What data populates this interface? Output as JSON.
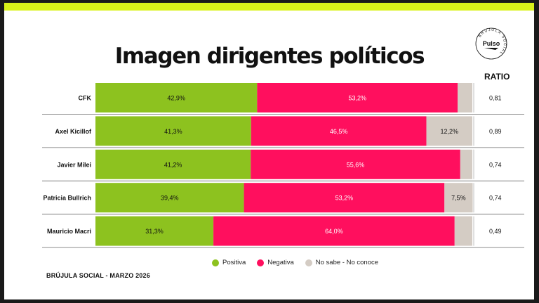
{
  "title": "Imagen dirigentes políticos",
  "ratio_header": "RATIO",
  "footer": "BRÚJULA SOCIAL - MARZO 2026",
  "logo": {
    "word": "Pulso",
    "ring_text": "BRÚJULA SOCIAL"
  },
  "colors": {
    "positiva": "#8dc21f",
    "negativa": "#ff0f5e",
    "nosabe": "#d4ccc4",
    "accent": "#d9f21a"
  },
  "chart_data": {
    "type": "bar",
    "orientation": "horizontal",
    "stacked": true,
    "categories": [
      "CFK",
      "Axel Kicillof",
      "Javier Milei",
      "Patricia Bullrich",
      "Mauricio Macri"
    ],
    "series": [
      {
        "name": "Positiva",
        "values": [
          42.9,
          41.3,
          41.2,
          39.4,
          31.3
        ],
        "labels": [
          "42,9%",
          "41,3%",
          "41,2%",
          "39,4%",
          "31,3%"
        ]
      },
      {
        "name": "Negativa",
        "values": [
          53.2,
          46.5,
          55.6,
          53.2,
          64.0
        ],
        "labels": [
          "53,2%",
          "46,5%",
          "55,6%",
          "53,2%",
          "64,0%"
        ]
      },
      {
        "name": "No sabe - No conoce",
        "values": [
          3.9,
          12.2,
          3.2,
          7.5,
          4.7
        ],
        "labels": [
          "",
          "12,2%",
          "",
          "7,5%",
          ""
        ]
      }
    ],
    "ratio": [
      "0,81",
      "0,89",
      "0,74",
      "0,74",
      "0,49"
    ],
    "xlim": [
      0,
      100
    ],
    "legend_position": "bottom"
  }
}
